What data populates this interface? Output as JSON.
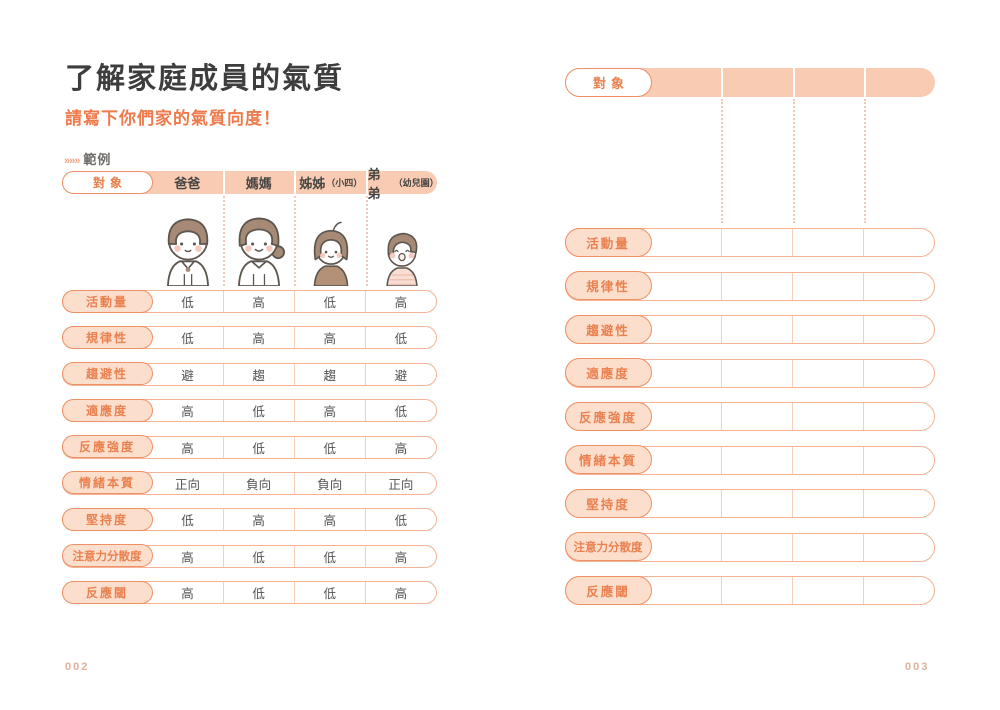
{
  "page_left": {
    "title": "了解家庭成員的氣質",
    "subtitle": "請寫下你們家的氣質向度！",
    "example_marker": "»»»",
    "example_label": "範例",
    "page_number": "002",
    "table": {
      "subject_label": "對象",
      "columns": [
        {
          "name": "爸爸",
          "note": ""
        },
        {
          "name": "媽媽",
          "note": ""
        },
        {
          "name": "姊姊",
          "note": "（小四）"
        },
        {
          "name": "弟弟",
          "note": "（幼兒園）"
        }
      ],
      "characters": [
        "dad",
        "mom",
        "sister",
        "brother"
      ],
      "rows": [
        {
          "label": "活動量",
          "values": [
            "低",
            "高",
            "低",
            "高"
          ]
        },
        {
          "label": "規律性",
          "values": [
            "低",
            "高",
            "高",
            "低"
          ]
        },
        {
          "label": "趨避性",
          "values": [
            "避",
            "趨",
            "趨",
            "避"
          ]
        },
        {
          "label": "適應度",
          "values": [
            "高",
            "低",
            "高",
            "低"
          ]
        },
        {
          "label": "反應強度",
          "values": [
            "高",
            "低",
            "低",
            "高"
          ]
        },
        {
          "label": "情緒本質",
          "values": [
            "正向",
            "負向",
            "負向",
            "正向"
          ]
        },
        {
          "label": "堅持度",
          "values": [
            "低",
            "高",
            "高",
            "低"
          ]
        },
        {
          "label": "注意力分散度",
          "values": [
            "高",
            "低",
            "低",
            "高"
          ]
        },
        {
          "label": "反應閾",
          "values": [
            "高",
            "低",
            "低",
            "高"
          ]
        }
      ]
    }
  },
  "page_right": {
    "page_number": "003",
    "subject_label": "對象",
    "row_labels": [
      "活動量",
      "規律性",
      "趨避性",
      "適應度",
      "反應強度",
      "情緒本質",
      "堅持度",
      "注意力分散度",
      "反應閾"
    ]
  },
  "colors": {
    "peach_bar": "#f8cbb2",
    "pill_fill": "#fcdecd",
    "accent_orange": "#ea8150",
    "border_orange": "#ee9166",
    "row_border": "#f3b394",
    "title_dark": "#3d3d3d",
    "subtitle_orange": "#ef7b4d",
    "page_number": "#e0b19c",
    "hair_brown": "#a68a76",
    "sister_shirt": "#b39178",
    "brother_shirt": "#f9ded3"
  }
}
